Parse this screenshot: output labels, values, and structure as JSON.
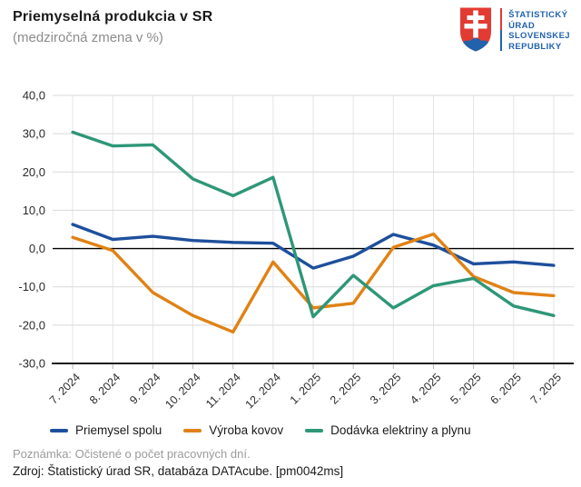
{
  "header": {
    "title": "Priemyselná produkcia v SR",
    "subtitle": "(medziročná zmena v %)"
  },
  "logo": {
    "lines": [
      "ŠTATISTICKÝ",
      "ÚRAD",
      "SLOVENSKEJ",
      "REPUBLIKY"
    ],
    "text_color": "#2262ad",
    "shield_red": "#e23b32",
    "shield_blue": "#2262ad"
  },
  "chart_data": {
    "type": "line",
    "title": "Priemyselná produkcia v SR",
    "subtitle": "(medziročná zmena v %)",
    "categories": [
      "7. 2024",
      "8. 2024",
      "9. 2024",
      "10. 2024",
      "11. 2024",
      "12. 2024",
      "1. 2025",
      "2. 2025",
      "3. 2025",
      "4. 2025",
      "5. 2025",
      "6. 2025",
      "7. 2025"
    ],
    "series": [
      {
        "name": "Priemysel spolu",
        "color": "#1e4f9c",
        "values": [
          6.3,
          2.4,
          3.2,
          2.1,
          1.6,
          1.4,
          -5.1,
          -2.0,
          3.7,
          0.9,
          -4.0,
          -3.5,
          -4.4
        ]
      },
      {
        "name": "Výroba kovov",
        "color": "#e08214",
        "values": [
          2.9,
          -0.5,
          -11.5,
          -17.5,
          -21.8,
          -3.5,
          -15.5,
          -14.3,
          0.3,
          3.8,
          -7.3,
          -11.5,
          -12.3
        ]
      },
      {
        "name": "Dodávka elektriny a plynu",
        "color": "#2e9778",
        "values": [
          30.4,
          26.8,
          27.1,
          18.2,
          13.8,
          18.6,
          -17.8,
          -7.0,
          -15.5,
          -9.7,
          -7.8,
          -15.0,
          -17.5
        ]
      }
    ],
    "ylim": [
      -30,
      40
    ],
    "yticks": [
      40,
      30,
      20,
      10,
      0,
      -10,
      -20,
      -30
    ],
    "ytick_labels": [
      "40,0",
      "30,0",
      "20,0",
      "10,0",
      "0,0",
      "-10,0",
      "-20,0",
      "-30,0"
    ],
    "grid": true,
    "gridline_color": "#d9d9d9",
    "vertical_gridline_color": "#e4e4e4",
    "zero_line_color": "#000000",
    "axis_line_color": "#1a1a1a",
    "tick_color": "#b3b3b3",
    "axis_text_color": "#2b2b2b",
    "legend_position": "bottom"
  },
  "footer": {
    "note": "Poznámka: Očistené o počet pracovných dní.",
    "source": "Zdroj: Štatistický úrad SR, databáza DATAcube. [pm0042ms]"
  }
}
